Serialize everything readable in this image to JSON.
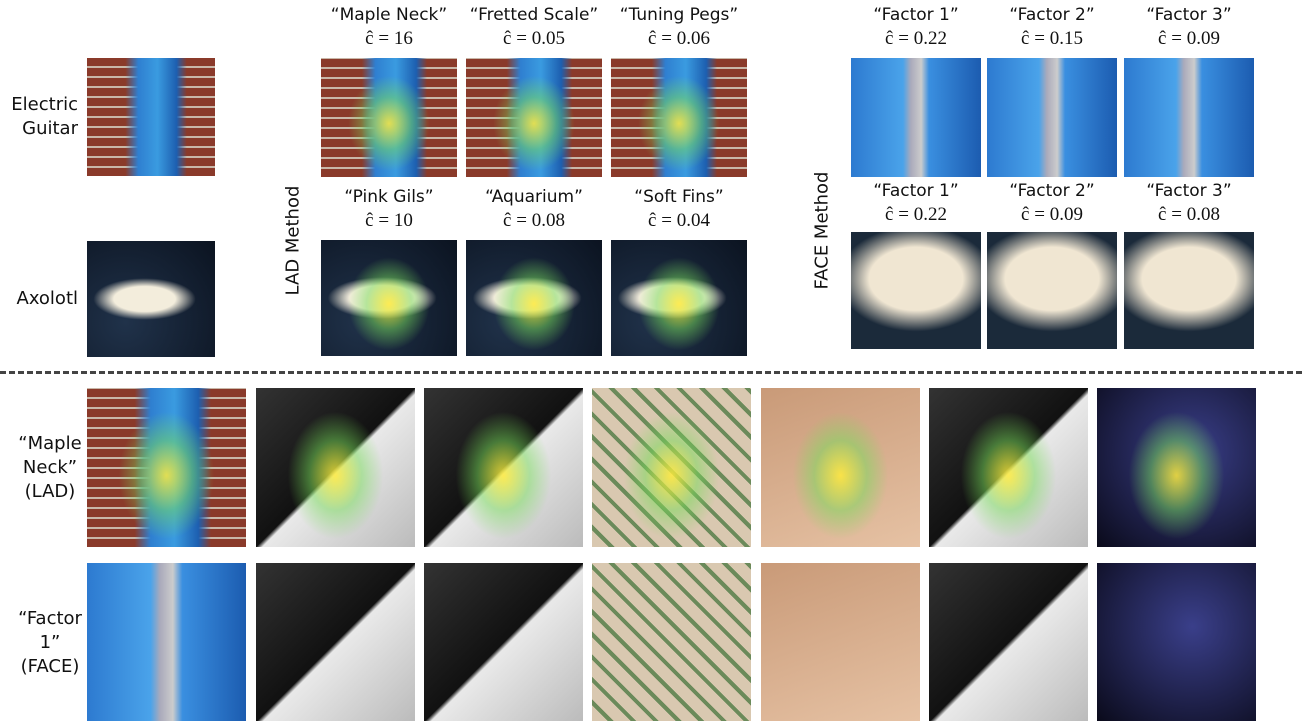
{
  "inputs": [
    {
      "label": "Electric Guitar",
      "kind": "guitar"
    },
    {
      "label": "Axolotl",
      "kind": "axolotl"
    }
  ],
  "lad": {
    "label": "LAD Method",
    "rows": [
      [
        {
          "name": "“Maple Neck”",
          "score": "ĉ = 16"
        },
        {
          "name": "“Fretted Scale”",
          "score": "ĉ = 0.05"
        },
        {
          "name": "“Tuning Pegs”",
          "score": "ĉ = 0.06"
        }
      ],
      [
        {
          "name": "“Pink Gils”",
          "score": "ĉ = 10"
        },
        {
          "name": "“Aquarium”",
          "score": "ĉ = 0.08"
        },
        {
          "name": "“Soft Fins”",
          "score": "ĉ = 0.04"
        }
      ]
    ]
  },
  "face": {
    "label": "FACE Method",
    "rows": [
      [
        {
          "name": "“Factor 1”",
          "score": "ĉ = 0.22"
        },
        {
          "name": "“Factor 2”",
          "score": "ĉ = 0.15"
        },
        {
          "name": "“Factor 3”",
          "score": "ĉ = 0.09"
        }
      ],
      [
        {
          "name": "“Factor 1”",
          "score": "ĉ = 0.22"
        },
        {
          "name": "“Factor 2”",
          "score": "ĉ = 0.09"
        },
        {
          "name": "“Factor 3”",
          "score": "ĉ = 0.08"
        }
      ]
    ]
  },
  "examples": [
    {
      "label": "“Maple Neck” (LAD)"
    },
    {
      "label": "“Factor 1” (FACE)"
    }
  ]
}
